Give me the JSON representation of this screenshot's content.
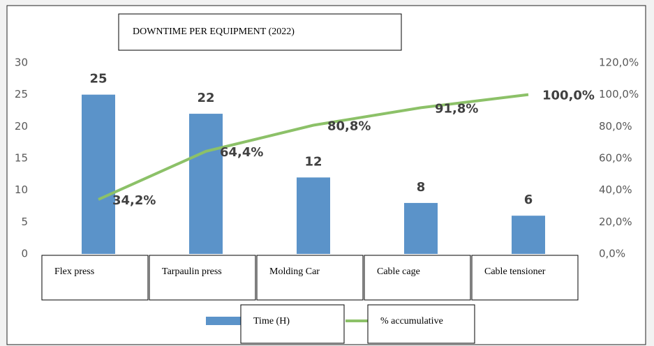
{
  "chart_data": {
    "type": "bar",
    "title": "DOWNTIME PER EQUIPMENT (2022)",
    "categories": [
      "Flex press",
      "Tarpaulin press",
      "Molding Car",
      "Cable cage",
      "Cable tensioner"
    ],
    "series": [
      {
        "name": "Time (H)",
        "type": "bar",
        "color": "#5b93c9",
        "values": [
          25,
          22,
          12,
          8,
          6
        ]
      },
      {
        "name": "% accumulative",
        "type": "line",
        "axis": "y2",
        "color": "#8cc168",
        "values": [
          34.2,
          64.4,
          80.8,
          91.8,
          100.0
        ],
        "value_labels": [
          "34,2%",
          "64,4%",
          "80,8%",
          "91,8%",
          "100,0%"
        ]
      }
    ],
    "ylim": [
      0,
      30
    ],
    "yticks": [
      0,
      5,
      10,
      15,
      20,
      25,
      30
    ],
    "y2lim": [
      0,
      120
    ],
    "y2ticks": [
      {
        "value": 0,
        "label": "0,0%"
      },
      {
        "value": 20,
        "label": "20,0%"
      },
      {
        "value": 40,
        "label": "40,0%"
      },
      {
        "value": 60,
        "label": "60,0%"
      },
      {
        "value": 80,
        "label": "80,0%"
      },
      {
        "value": 100,
        "label": "100,0%"
      },
      {
        "value": 120,
        "label": "120,0%"
      }
    ]
  }
}
